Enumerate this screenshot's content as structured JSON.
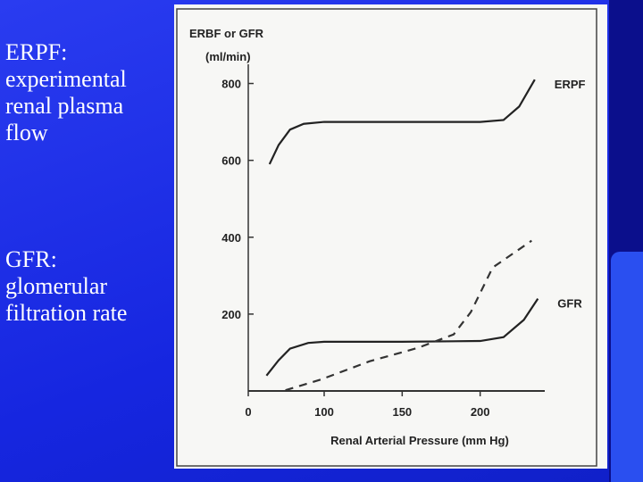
{
  "slide": {
    "notes": [
      "ERPF: experimental renal plasma flow",
      "GFR: glomerular filtration rate"
    ]
  },
  "chart_data": {
    "type": "line",
    "y_label": [
      "ERBF or GFR",
      "(ml/min)"
    ],
    "x_label": "Renal Arterial Pressure (mm Hg)",
    "xlim": [
      0,
      250
    ],
    "xticks": [
      0,
      100,
      150,
      200
    ],
    "ylim": [
      0,
      850
    ],
    "yticks": [
      200,
      400,
      600,
      800
    ],
    "series": [
      {
        "name": "ERPF",
        "color": "#222222",
        "dashed": false,
        "x": [
          28,
          40,
          55,
          73,
          100,
          150,
          200,
          215,
          225,
          235
        ],
        "values": [
          590,
          640,
          680,
          695,
          700,
          700,
          700,
          705,
          740,
          810
        ]
      },
      {
        "name": "GFR",
        "color": "#222222",
        "dashed": false,
        "x": [
          24,
          40,
          55,
          79,
          100,
          150,
          200,
          215,
          228,
          237
        ],
        "values": [
          40,
          80,
          110,
          125,
          128,
          128,
          130,
          140,
          185,
          240
        ]
      },
      {
        "color": "#333333",
        "dashed": true,
        "x": [
          49,
          96,
          129,
          160,
          183,
          194,
          208,
          233
        ],
        "values": [
          2,
          30,
          77,
          112,
          147,
          205,
          321,
          391
        ]
      }
    ]
  }
}
